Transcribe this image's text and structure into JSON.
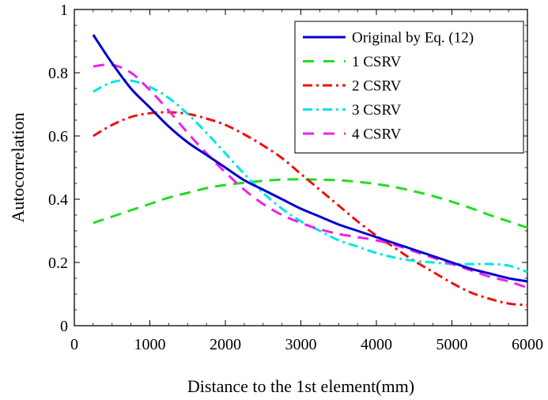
{
  "chart_data": {
    "type": "line",
    "title": "",
    "xlabel": "Distance to the 1st element(mm)",
    "ylabel": "Autocorrelation",
    "xlim": [
      0,
      6000
    ],
    "ylim": [
      0,
      1
    ],
    "xticks": [
      0,
      1000,
      2000,
      3000,
      4000,
      5000,
      6000
    ],
    "yticks": [
      0,
      0.2,
      0.4,
      0.6,
      0.8,
      1
    ],
    "xtick_labels": [
      "0",
      "1000",
      "2000",
      "3000",
      "4000",
      "5000",
      "6000"
    ],
    "ytick_labels": [
      "0",
      "0.2",
      "0.4",
      "0.6",
      "0.8",
      "1"
    ],
    "grid": false,
    "legend_position": "top-right",
    "series": [
      {
        "name": "Original by Eq. (12)",
        "color": "#0000cc",
        "dash": "solid",
        "x": [
          250,
          500,
          750,
          1000,
          1250,
          1500,
          1750,
          2000,
          2250,
          2500,
          2750,
          3000,
          3250,
          3500,
          3750,
          4000,
          4250,
          4500,
          4750,
          5000,
          5250,
          5500,
          5750,
          6000
        ],
        "y": [
          0.92,
          0.83,
          0.75,
          0.69,
          0.63,
          0.58,
          0.54,
          0.5,
          0.46,
          0.43,
          0.4,
          0.37,
          0.345,
          0.32,
          0.3,
          0.28,
          0.26,
          0.24,
          0.22,
          0.2,
          0.18,
          0.165,
          0.15,
          0.14
        ]
      },
      {
        "name": "1 CSRV",
        "color": "#22dd22",
        "dash": "long-dash",
        "x": [
          250,
          500,
          750,
          1000,
          1250,
          1500,
          1750,
          2000,
          2250,
          2500,
          2750,
          3000,
          3250,
          3500,
          3750,
          4000,
          4250,
          4500,
          4750,
          5000,
          5250,
          5500,
          5750,
          6000
        ],
        "y": [
          0.325,
          0.345,
          0.365,
          0.385,
          0.405,
          0.42,
          0.435,
          0.445,
          0.452,
          0.458,
          0.462,
          0.463,
          0.462,
          0.46,
          0.455,
          0.448,
          0.438,
          0.425,
          0.41,
          0.392,
          0.372,
          0.35,
          0.33,
          0.31
        ]
      },
      {
        "name": "2 CSRV",
        "color": "#ee1111",
        "dash": "dash-dot",
        "x": [
          250,
          500,
          750,
          1000,
          1250,
          1500,
          1750,
          2000,
          2250,
          2500,
          2750,
          3000,
          3250,
          3500,
          3750,
          4000,
          4250,
          4500,
          4750,
          5000,
          5250,
          5500,
          5750,
          6000
        ],
        "y": [
          0.6,
          0.635,
          0.66,
          0.672,
          0.675,
          0.67,
          0.655,
          0.635,
          0.605,
          0.57,
          0.53,
          0.48,
          0.43,
          0.38,
          0.33,
          0.285,
          0.245,
          0.205,
          0.17,
          0.135,
          0.105,
          0.085,
          0.07,
          0.065
        ]
      },
      {
        "name": "3 CSRV",
        "color": "#00e5e5",
        "dash": "dash-dot",
        "x": [
          250,
          500,
          750,
          1000,
          1250,
          1500,
          1750,
          2000,
          2250,
          2500,
          2750,
          3000,
          3250,
          3500,
          3750,
          4000,
          4250,
          4500,
          4750,
          5000,
          5250,
          5500,
          5750,
          6000
        ],
        "y": [
          0.74,
          0.77,
          0.775,
          0.755,
          0.72,
          0.67,
          0.61,
          0.545,
          0.48,
          0.42,
          0.37,
          0.33,
          0.3,
          0.27,
          0.25,
          0.23,
          0.215,
          0.205,
          0.2,
          0.195,
          0.195,
          0.195,
          0.19,
          0.17
        ]
      },
      {
        "name": "4 CSRV",
        "color": "#ee22ee",
        "dash": "long-dash",
        "x": [
          250,
          500,
          750,
          1000,
          1250,
          1500,
          1750,
          2000,
          2250,
          2500,
          2750,
          3000,
          3250,
          3500,
          3750,
          4000,
          4250,
          4500,
          4750,
          5000,
          5250,
          5500,
          5750,
          6000
        ],
        "y": [
          0.82,
          0.825,
          0.8,
          0.745,
          0.68,
          0.61,
          0.545,
          0.485,
          0.43,
          0.385,
          0.35,
          0.325,
          0.305,
          0.29,
          0.28,
          0.27,
          0.255,
          0.235,
          0.215,
          0.195,
          0.175,
          0.155,
          0.14,
          0.12
        ]
      }
    ]
  }
}
